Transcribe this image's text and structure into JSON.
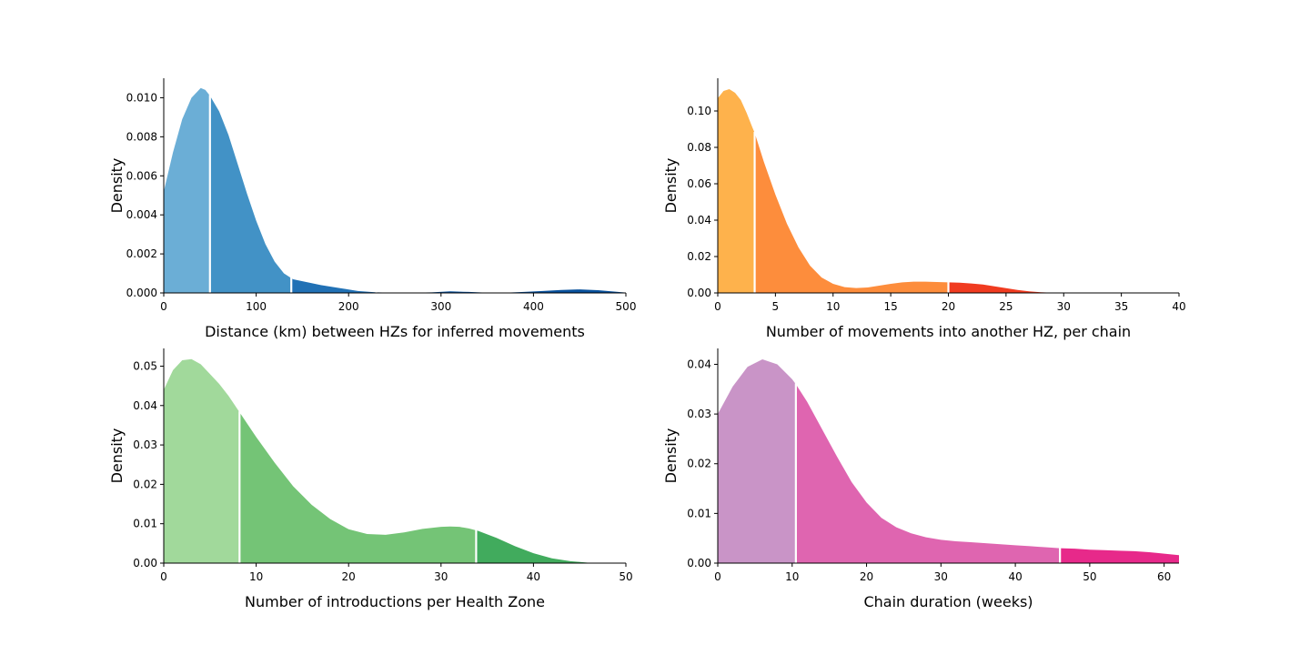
{
  "chart_data": [
    {
      "type": "area",
      "xlabel": "Distance (km) between HZs for inferred movements",
      "ylabel": "Density",
      "xlim": [
        0,
        500
      ],
      "ylim": [
        0,
        0.011
      ],
      "xticks": [
        0,
        100,
        200,
        300,
        400,
        500
      ],
      "yticks": [
        0.0,
        0.002,
        0.004,
        0.006,
        0.008,
        0.01
      ],
      "ytick_decimals": 3,
      "x_end": 500,
      "colors": [
        "#6baed6",
        "#4292c6",
        "#2171b5",
        "#08519c"
      ],
      "segment_boundaries": [
        50,
        138,
        230
      ],
      "x": [
        0,
        10,
        20,
        30,
        40,
        45,
        50,
        60,
        70,
        80,
        90,
        100,
        110,
        120,
        130,
        140,
        150,
        170,
        190,
        210,
        230,
        250,
        270,
        290,
        310,
        330,
        350,
        370,
        390,
        410,
        430,
        450,
        470,
        490,
        500
      ],
      "y": [
        0.0052,
        0.0072,
        0.0089,
        0.01,
        0.0105,
        0.0104,
        0.0101,
        0.0093,
        0.0081,
        0.0066,
        0.0051,
        0.0037,
        0.0025,
        0.0016,
        0.001,
        0.0007,
        0.0006,
        0.0004,
        0.00025,
        0.0001,
        3e-05,
        1e-05,
        1e-05,
        3e-05,
        8e-05,
        5e-05,
        1e-05,
        1e-05,
        5e-05,
        0.0001,
        0.00015,
        0.00018,
        0.00014,
        6e-05,
        2e-05
      ]
    },
    {
      "type": "area",
      "xlabel": "Number of movements into another HZ, per chain",
      "ylabel": "Density",
      "xlim": [
        0,
        40
      ],
      "ylim": [
        0,
        0.118
      ],
      "xticks": [
        0,
        5,
        10,
        15,
        20,
        25,
        30,
        35,
        40
      ],
      "yticks": [
        0.0,
        0.02,
        0.04,
        0.06,
        0.08,
        0.1
      ],
      "ytick_decimals": 2,
      "x_end": 29.5,
      "colors": [
        "#feb24c",
        "#fd8d3c",
        "#f03b20"
      ],
      "segment_boundaries": [
        3.2,
        20
      ],
      "x": [
        0,
        0.5,
        1,
        1.5,
        2,
        2.5,
        3,
        3.2,
        4,
        5,
        6,
        7,
        8,
        9,
        10,
        11,
        12,
        13,
        14,
        15,
        16,
        17,
        18,
        19,
        20,
        21,
        22,
        23,
        24,
        25,
        26,
        27,
        28,
        29,
        29.5
      ],
      "y": [
        0.107,
        0.111,
        0.112,
        0.11,
        0.106,
        0.099,
        0.091,
        0.088,
        0.072,
        0.054,
        0.038,
        0.025,
        0.015,
        0.0085,
        0.005,
        0.0032,
        0.0027,
        0.003,
        0.004,
        0.005,
        0.0058,
        0.0062,
        0.0062,
        0.006,
        0.0058,
        0.0056,
        0.0052,
        0.0046,
        0.0036,
        0.0026,
        0.0016,
        0.0009,
        0.0004,
        0.0001,
        0.0
      ]
    },
    {
      "type": "area",
      "xlabel": "Number of introductions per Health Zone",
      "ylabel": "Density",
      "xlim": [
        0,
        50
      ],
      "ylim": [
        0,
        0.0545
      ],
      "xticks": [
        0,
        10,
        20,
        30,
        40,
        50
      ],
      "yticks": [
        0.0,
        0.01,
        0.02,
        0.03,
        0.04,
        0.05
      ],
      "ytick_decimals": 2,
      "x_end": 47,
      "colors": [
        "#a1d99b",
        "#74c476",
        "#41ab5d"
      ],
      "segment_boundaries": [
        8.2,
        33.8
      ],
      "x": [
        0,
        1,
        2,
        3,
        4,
        5,
        6,
        7,
        8,
        9,
        10,
        12,
        14,
        16,
        18,
        20,
        22,
        24,
        26,
        28,
        30,
        31,
        32,
        33,
        34,
        36,
        38,
        40,
        42,
        44,
        46,
        47
      ],
      "y": [
        0.044,
        0.049,
        0.0515,
        0.0518,
        0.0505,
        0.048,
        0.0455,
        0.0425,
        0.039,
        0.0355,
        0.032,
        0.0255,
        0.0195,
        0.0148,
        0.0112,
        0.0086,
        0.0074,
        0.0072,
        0.0078,
        0.0087,
        0.0092,
        0.0093,
        0.0092,
        0.0088,
        0.0082,
        0.0064,
        0.0043,
        0.0025,
        0.0012,
        0.0005,
        0.0001,
        0.0
      ]
    },
    {
      "type": "area",
      "xlabel": "Chain duration (weeks)",
      "ylabel": "Density",
      "xlim": [
        0,
        62
      ],
      "ylim": [
        0,
        0.0432
      ],
      "xticks": [
        0,
        10,
        20,
        30,
        40,
        50,
        60
      ],
      "yticks": [
        0.0,
        0.01,
        0.02,
        0.03,
        0.04
      ],
      "ytick_decimals": 2,
      "x_end": 62,
      "colors": [
        "#c994c7",
        "#df65b0",
        "#e7298a"
      ],
      "segment_boundaries": [
        10.5,
        46
      ],
      "x": [
        0,
        2,
        4,
        6,
        8,
        10,
        10.5,
        12,
        14,
        16,
        18,
        20,
        22,
        24,
        26,
        28,
        30,
        32,
        34,
        36,
        38,
        40,
        42,
        44,
        46,
        48,
        50,
        52,
        54,
        56,
        58,
        60,
        62
      ],
      "y": [
        0.03,
        0.0355,
        0.0395,
        0.041,
        0.04,
        0.037,
        0.036,
        0.0325,
        0.027,
        0.0215,
        0.0163,
        0.0122,
        0.0091,
        0.0072,
        0.006,
        0.0052,
        0.0047,
        0.0044,
        0.0042,
        0.004,
        0.0038,
        0.0036,
        0.0034,
        0.0032,
        0.003,
        0.0029,
        0.0027,
        0.0026,
        0.0025,
        0.0024,
        0.0022,
        0.0019,
        0.0016
      ]
    }
  ]
}
